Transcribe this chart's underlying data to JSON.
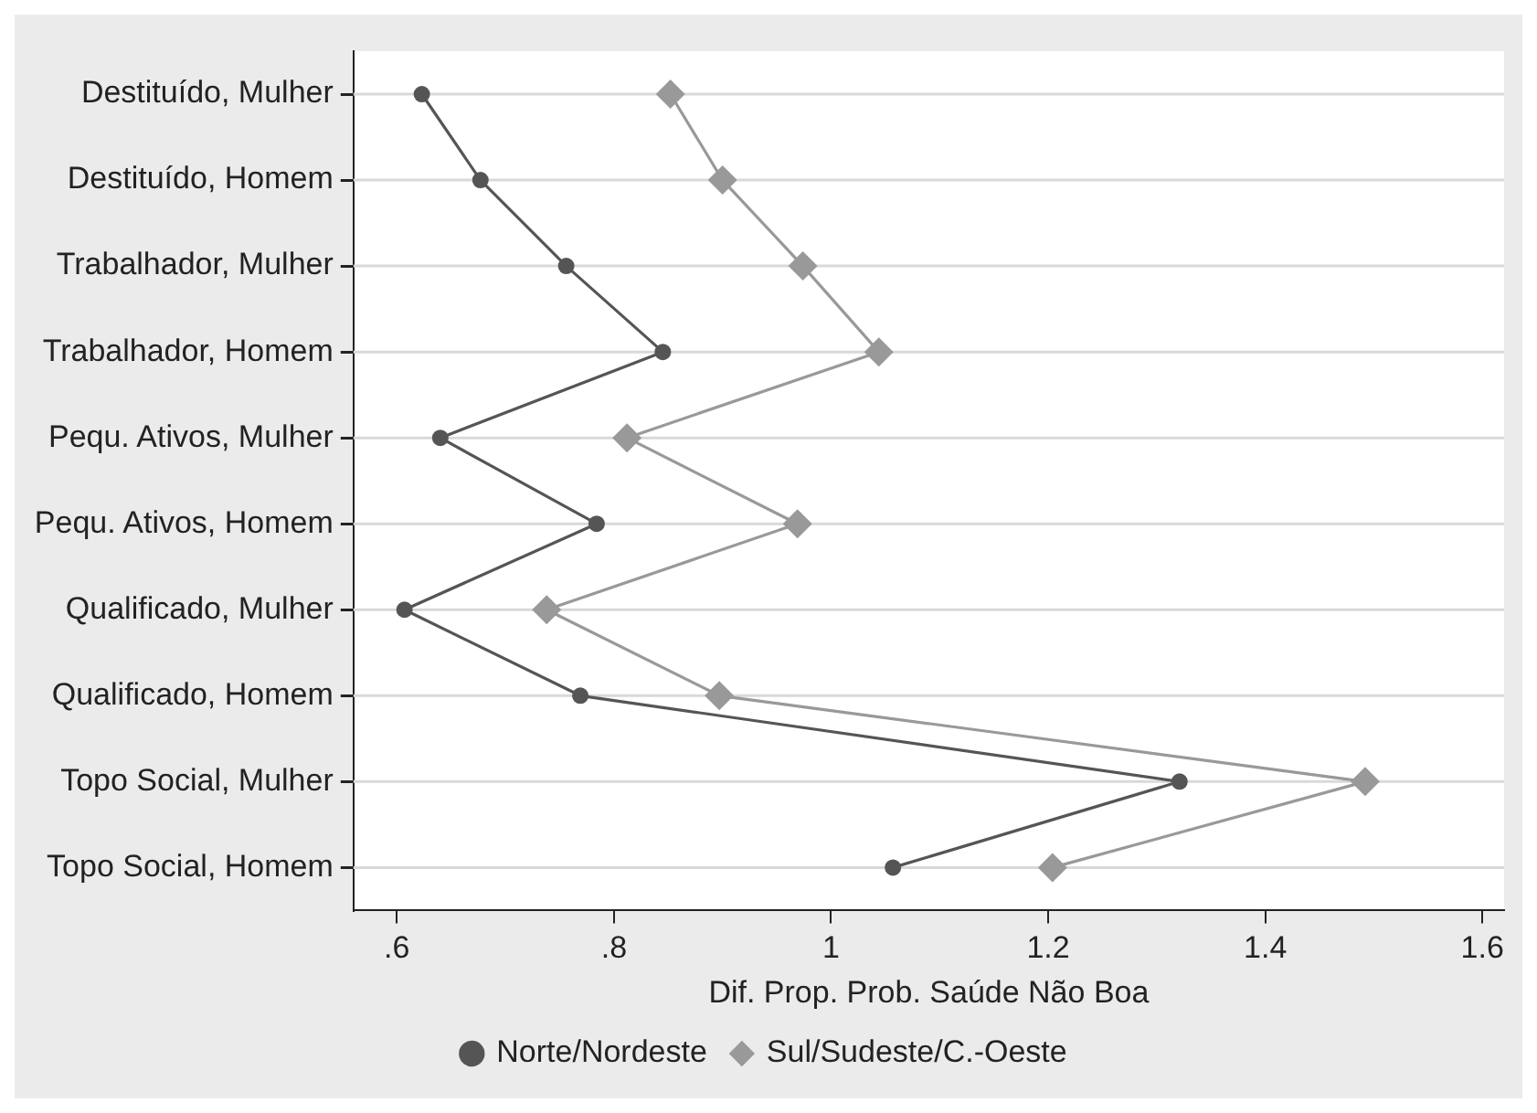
{
  "chart_data": {
    "type": "line",
    "orientation": "horizontal",
    "xlabel": "Dif. Prop. Prob. Saúde Não Boa",
    "categories": [
      "Destituído, Mulher",
      "Destituído, Homem",
      "Trabalhador, Mulher",
      "Trabalhador, Homem",
      "Pequ. Ativos, Mulher",
      "Pequ. Ativos, Homem",
      "Qualificado, Mulher",
      "Qualificado, Homem",
      "Topo Social, Mulher",
      "Topo Social, Homem"
    ],
    "series": [
      {
        "name": "Norte/Nordeste",
        "color": "#555555",
        "marker": "circle",
        "values": [
          0.623,
          0.677,
          0.756,
          0.845,
          0.64,
          0.784,
          0.607,
          0.769,
          1.321,
          1.057
        ]
      },
      {
        "name": "Sul/Sudeste/C.-Oeste",
        "color": "#999999",
        "marker": "diamond",
        "values": [
          0.852,
          0.9,
          0.974,
          1.044,
          0.812,
          0.969,
          0.738,
          0.897,
          1.492,
          1.204
        ]
      }
    ],
    "xlim": [
      0.56,
      1.62
    ],
    "xticks": [
      {
        "value": 0.6,
        "label": ".6"
      },
      {
        "value": 0.8,
        "label": ".8"
      },
      1,
      1.2,
      1.4,
      1.6
    ],
    "grid": "y",
    "legend": "bottom",
    "line_style": "solid"
  }
}
